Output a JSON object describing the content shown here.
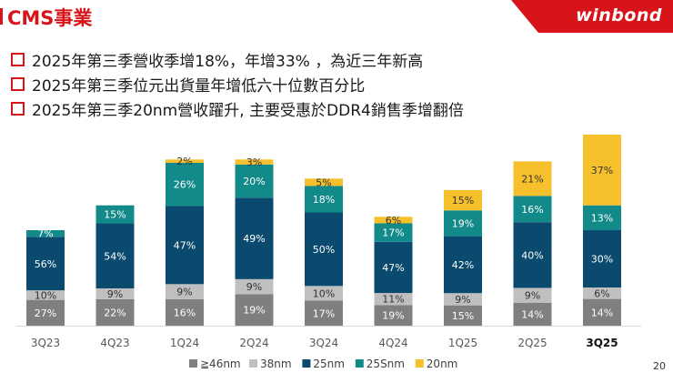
{
  "slide": {
    "title": "CMS事業",
    "brand": "winbond",
    "page_number": "20",
    "brand_color": "#d7141a",
    "bullets": [
      "2025年第三季營收季增18%，年增33% ，為近三年新高",
      "2025年第三季位元出貨量年增低六十位數百分比",
      "2025年第三季20nm營收躍升, 主要受惠於DDR4銷售季增翻倍"
    ]
  },
  "chart_data": {
    "type": "bar",
    "stacked": true,
    "title": "",
    "xlabel": "",
    "ylabel": "",
    "categories": [
      "3Q23",
      "4Q23",
      "1Q24",
      "2Q24",
      "3Q24",
      "4Q24",
      "1Q25",
      "2Q25",
      "3Q25"
    ],
    "highlight_category": "3Q25",
    "series": [
      {
        "name": "≧46nm",
        "color": "#7f7f7f",
        "label_color": "#ffffff",
        "values": [
          27,
          22,
          16,
          19,
          17,
          19,
          15,
          14,
          14
        ]
      },
      {
        "name": "38nm",
        "color": "#bfbfbf",
        "label_color": "#333333",
        "values": [
          10,
          9,
          9,
          9,
          10,
          11,
          9,
          9,
          6
        ]
      },
      {
        "name": "25nm",
        "color": "#0b4a6f",
        "label_color": "#ffffff",
        "values": [
          56,
          54,
          47,
          49,
          50,
          47,
          42,
          40,
          30
        ]
      },
      {
        "name": "25Snm",
        "color": "#138a8a",
        "label_color": "#ffffff",
        "values": [
          7,
          15,
          26,
          20,
          18,
          17,
          19,
          16,
          13
        ]
      },
      {
        "name": "20nm",
        "color": "#f5c02b",
        "label_color": "#333333",
        "values": [
          null,
          null,
          2,
          3,
          5,
          6,
          15,
          21,
          37
        ]
      }
    ],
    "relative_total_height": [
      0.5,
      0.63,
      0.87,
      0.87,
      0.77,
      0.57,
      0.71,
      0.86,
      1.0
    ],
    "legend_position": "bottom"
  }
}
